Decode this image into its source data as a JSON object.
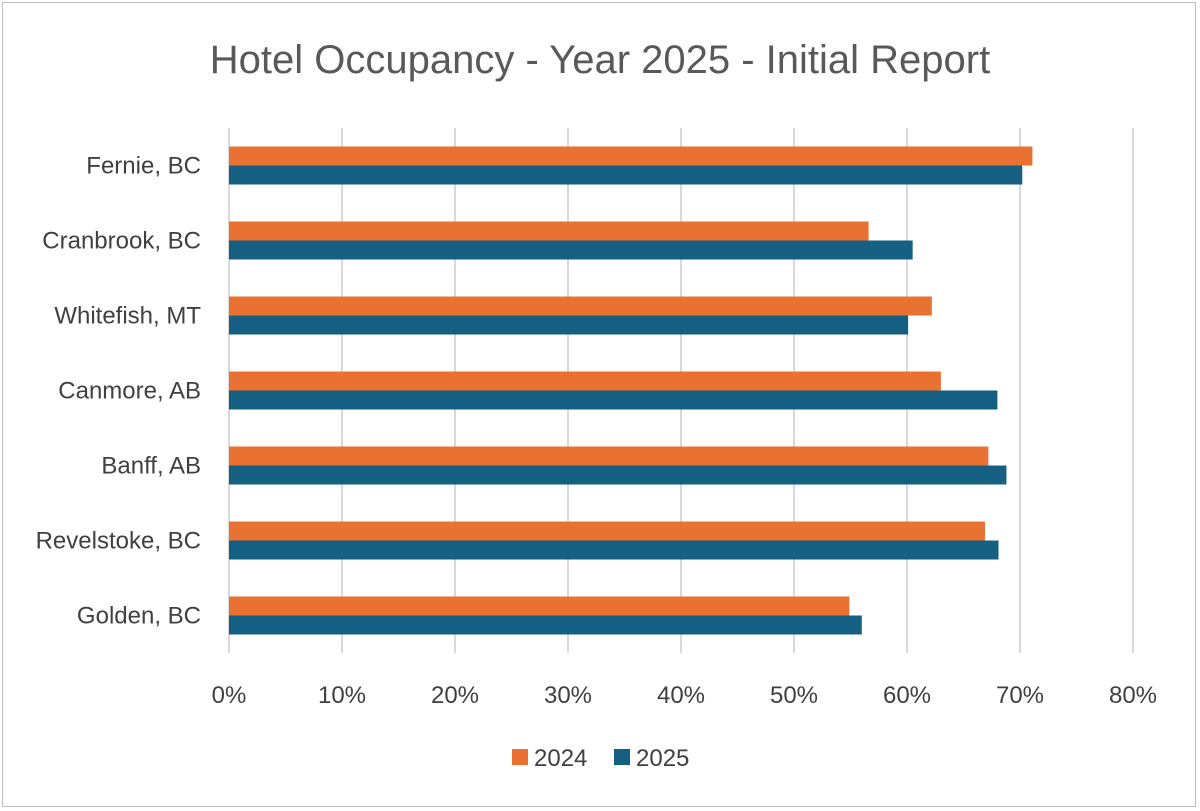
{
  "chart_data": {
    "type": "bar",
    "orientation": "horizontal",
    "title": "Hotel Occupancy - Year 2025 - Initial Report",
    "categories": [
      "Fernie, BC",
      "Cranbrook, BC",
      "Whitefish, MT",
      "Canmore, AB",
      "Banff, AB",
      "Revelstoke, BC",
      "Golden, BC"
    ],
    "series": [
      {
        "name": "2024",
        "color": "#E97132",
        "values": [
          71.1,
          56.6,
          62.2,
          63.0,
          67.2,
          66.9,
          54.9
        ]
      },
      {
        "name": "2025",
        "color": "#156082",
        "values": [
          70.2,
          60.5,
          60.1,
          68.0,
          68.8,
          68.1,
          56.0
        ]
      }
    ],
    "xlim": [
      0,
      80
    ],
    "xticks": [
      "0%",
      "10%",
      "20%",
      "30%",
      "40%",
      "50%",
      "60%",
      "70%",
      "80%"
    ],
    "xlabel": "",
    "ylabel": "",
    "grid": true,
    "legend": "bottom"
  }
}
